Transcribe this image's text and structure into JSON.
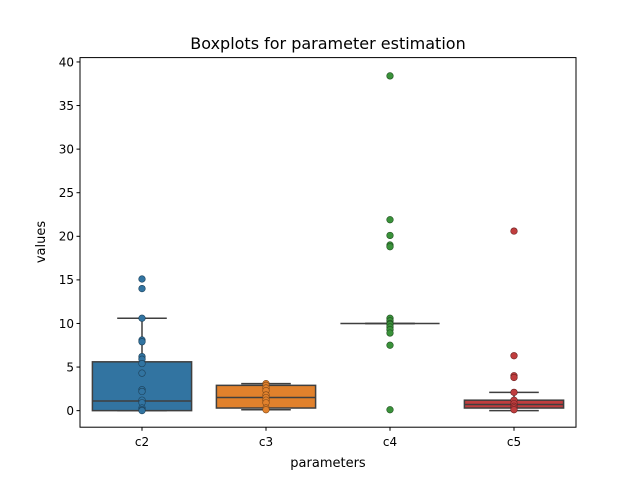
{
  "chart_data": {
    "type": "boxplot",
    "title": "Boxplots for parameter estimation",
    "xlabel": "parameters",
    "ylabel": "values",
    "ylim": [
      -1.9,
      40.5
    ],
    "yticks": [
      0,
      5,
      10,
      15,
      20,
      25,
      30,
      35,
      40
    ],
    "yticklabels": [
      "0",
      "5",
      "10",
      "15",
      "20",
      "25",
      "30",
      "35",
      "40"
    ],
    "grid": false,
    "categories": [
      "c2",
      "c3",
      "c4",
      "c5"
    ],
    "series": [
      {
        "category": "c2",
        "color": "#3274a1",
        "q1": 0.0,
        "median": 1.1,
        "q3": 5.6,
        "whisker_low": 0.0,
        "whisker_high": 10.6,
        "points": [
          15.1,
          14.0,
          10.6,
          8.1,
          7.9,
          6.2,
          5.9,
          5.4,
          4.3,
          2.4,
          2.2,
          1.2,
          0.9,
          0.3,
          0.1,
          0.0
        ]
      },
      {
        "category": "c3",
        "color": "#e1812c",
        "q1": 0.3,
        "median": 1.5,
        "q3": 2.9,
        "whisker_low": 0.1,
        "whisker_high": 3.1,
        "points": [
          3.1,
          2.9,
          2.6,
          2.3,
          1.8,
          1.5,
          1.2,
          0.9,
          0.3,
          0.1
        ]
      },
      {
        "category": "c4",
        "color": "#3a923a",
        "q1": 10.0,
        "median": 10.0,
        "q3": 10.0,
        "whisker_low": 10.0,
        "whisker_high": 10.0,
        "points": [
          38.4,
          21.9,
          20.1,
          19.0,
          18.8,
          10.6,
          10.3,
          10.0,
          9.9,
          9.6,
          9.3,
          8.9,
          7.5,
          0.1
        ]
      },
      {
        "category": "c5",
        "color": "#c03d3e",
        "q1": 0.3,
        "median": 0.7,
        "q3": 1.2,
        "whisker_low": 0.0,
        "whisker_high": 2.1,
        "points": [
          20.6,
          6.3,
          4.0,
          3.8,
          2.1,
          1.2,
          0.8,
          0.5,
          0.3,
          0.1
        ]
      }
    ]
  }
}
